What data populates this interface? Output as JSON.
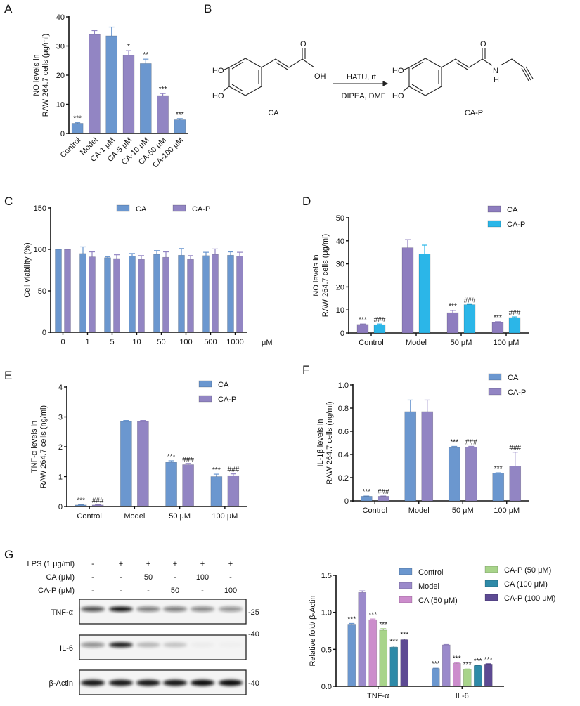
{
  "panel_labels": {
    "A": "A",
    "B": "B",
    "C": "C",
    "D": "D",
    "E": "E",
    "F": "F",
    "G": "G"
  },
  "scheme": {
    "reactant_name": "CA",
    "product_name": "CA-P",
    "reagents_top": "HATU, rt",
    "reagents_bottom": "DIPEA, DMF",
    "atoms": {
      "ho1": "HO",
      "ho2": "HO",
      "o1": "O",
      "oh": "OH",
      "ho3": "HO",
      "ho4": "HO",
      "o2": "O",
      "n": "N",
      "h": "H"
    }
  },
  "blot": {
    "conditions": [
      {
        "label": "LPS (1 μg/ml)",
        "values": [
          "-",
          "+",
          "+",
          "+",
          "+",
          "+"
        ]
      },
      {
        "label": "CA (μM)",
        "values": [
          "-",
          "-",
          "50",
          "-",
          "100",
          "-"
        ]
      },
      {
        "label": "CA-P (μM)",
        "values": [
          "-",
          "-",
          "-",
          "50",
          "-",
          "100"
        ]
      }
    ],
    "rows": [
      {
        "label": "TNF-α",
        "marker": "-25",
        "intensity": [
          0.75,
          1.0,
          0.55,
          0.55,
          0.5,
          0.45
        ]
      },
      {
        "label": "IL-6",
        "marker": "-40",
        "intensity": [
          0.45,
          0.95,
          0.25,
          0.2,
          0.03,
          0.02
        ]
      },
      {
        "label": "β-Actin",
        "marker": "-40",
        "intensity": [
          0.95,
          0.95,
          0.95,
          0.95,
          1.0,
          1.0
        ]
      }
    ]
  },
  "chart_data": [
    {
      "panel": "A",
      "type": "bar",
      "title": "",
      "ylabel": [
        "NO levels in",
        "RAW 264.7 cells (μg/ml)"
      ],
      "xlabel": "",
      "ylim": [
        0,
        40
      ],
      "yticks": [
        0,
        10,
        20,
        30,
        40
      ],
      "categories": [
        "Control",
        "Model",
        "CA-1 μM",
        "CA-5 μM",
        "CA-10 μM",
        "CA-50 μM",
        "CA-100 μM"
      ],
      "series": [
        {
          "name": "NO",
          "colors": [
            "#6b97cf",
            "#9285c3",
            "#6b97cf",
            "#9285c3",
            "#6b97cf",
            "#9285c3",
            "#6b97cf"
          ],
          "values": [
            3.5,
            34,
            33.5,
            26.8,
            24,
            13,
            4.7
          ],
          "errors": [
            0.2,
            1.3,
            3,
            1.6,
            1.5,
            0.7,
            0.4
          ],
          "annotations": [
            "***",
            "",
            "",
            "*",
            "**",
            "***",
            "***"
          ]
        }
      ]
    },
    {
      "panel": "C",
      "type": "bar",
      "title": "",
      "ylabel": [
        "Cell viability (%)"
      ],
      "xlabel": "μM",
      "ylim": [
        0,
        150
      ],
      "yticks": [
        0,
        50,
        100,
        150
      ],
      "legend": "top",
      "categories": [
        "0",
        "1",
        "5",
        "10",
        "50",
        "100",
        "500",
        "1000"
      ],
      "series": [
        {
          "name": "CA",
          "color": "#6b97cf",
          "values": [
            100,
            95,
            90,
            92,
            94,
            93,
            92.5,
            93
          ],
          "errors": [
            0,
            8,
            1,
            3,
            4.5,
            8,
            4,
            4
          ]
        },
        {
          "name": "CA-P",
          "color": "#9285c3",
          "values": [
            100,
            91,
            89,
            88,
            90.5,
            88,
            94,
            92
          ],
          "errors": [
            0,
            6,
            4.5,
            4.5,
            6.5,
            4.5,
            6.5,
            4.5
          ]
        }
      ]
    },
    {
      "panel": "D",
      "type": "bar",
      "title": "",
      "ylabel": [
        "NO levels in",
        "RAW 264.7 cells (μg/ml)"
      ],
      "xlabel": "",
      "ylim": [
        0,
        50
      ],
      "yticks": [
        0,
        10,
        20,
        30,
        40,
        50
      ],
      "legend": "top-right",
      "categories": [
        "Control",
        "Model",
        "50 μM",
        "100 μM"
      ],
      "series": [
        {
          "name": "CA",
          "color": "#8e7dbf",
          "values": [
            3.7,
            37,
            8.8,
            4.6
          ],
          "errors": [
            0.2,
            3.5,
            1,
            0.3
          ],
          "annotations": [
            "***",
            "",
            "***",
            "***"
          ]
        },
        {
          "name": "CA-P",
          "color": "#2bb6e8",
          "values": [
            3.6,
            34.3,
            12.3,
            6.7
          ],
          "errors": [
            0.3,
            3.8,
            0.1,
            0.3
          ],
          "annotations": [
            "###",
            "",
            "###",
            "###"
          ]
        }
      ]
    },
    {
      "panel": "E",
      "type": "bar",
      "title": "",
      "ylabel": [
        "TNF-α  levels in",
        "RAW 264.7 cells (ng/ml)"
      ],
      "xlabel": "",
      "ylim": [
        0,
        4
      ],
      "yticks": [
        0,
        1,
        2,
        3,
        4
      ],
      "legend": "top-right",
      "categories": [
        "Control",
        "Model",
        "50 μM",
        "100 μM"
      ],
      "series": [
        {
          "name": "CA",
          "color": "#6b97cf",
          "values": [
            0.05,
            2.85,
            1.48,
            1.0
          ],
          "errors": [
            0.01,
            0.03,
            0.05,
            0.08
          ],
          "annotations": [
            "***",
            "",
            "***",
            "***"
          ]
        },
        {
          "name": "CA-P",
          "color": "#9285c3",
          "values": [
            0.05,
            2.85,
            1.4,
            1.03
          ],
          "errors": [
            0.01,
            0.03,
            0.04,
            0.06
          ],
          "annotations": [
            "###",
            "",
            "###",
            "###"
          ]
        }
      ]
    },
    {
      "panel": "F",
      "type": "bar",
      "title": "",
      "ylabel": [
        "IL-1β levels in",
        "RAW 264.7 cells (ng/ml)"
      ],
      "xlabel": "",
      "ylim": [
        0,
        1.0
      ],
      "yticks": [
        "0",
        "0.2",
        "0.4",
        "0.6",
        "0.8",
        "1.0"
      ],
      "legend": "top-right",
      "categories": [
        "Control",
        "Model",
        "50 μM",
        "100 μM"
      ],
      "series": [
        {
          "name": "CA",
          "color": "#6b97cf",
          "values": [
            0.04,
            0.77,
            0.46,
            0.24
          ],
          "errors": [
            0.002,
            0.1,
            0.01,
            0.002
          ],
          "annotations": [
            "***",
            "",
            "***",
            "***"
          ]
        },
        {
          "name": "CA-P",
          "color": "#9285c3",
          "values": [
            0.04,
            0.77,
            0.465,
            0.3
          ],
          "errors": [
            0.002,
            0.1,
            0.005,
            0.12
          ],
          "annotations": [
            "###",
            "",
            "###",
            "###"
          ]
        }
      ]
    },
    {
      "panel": "G",
      "type": "bar",
      "title": "",
      "ylabel": [
        "Relative fold/ β-Actin"
      ],
      "xlabel": "",
      "ylim": [
        0,
        1.5
      ],
      "yticks": [
        "0.0",
        "0.5",
        "1.0",
        "1.5"
      ],
      "legend": "top-right",
      "categories": [
        "TNF-α",
        "IL-6"
      ],
      "series": [
        {
          "name": "Control",
          "color": "#6b97cf",
          "values": [
            0.84,
            0.24
          ],
          "errors": [
            0.01,
            0.005
          ],
          "annotations": [
            "***",
            "***"
          ]
        },
        {
          "name": "Model",
          "color": "#9b8acb",
          "values": [
            1.27,
            0.56
          ],
          "errors": [
            0.02,
            0.005
          ],
          "annotations": [
            "",
            ""
          ]
        },
        {
          "name": "CA (50 μM)",
          "color": "#cc8ccc",
          "values": [
            0.9,
            0.31
          ],
          "errors": [
            0.01,
            0.01
          ],
          "annotations": [
            "***",
            "***"
          ]
        },
        {
          "name": "CA-P (50 μM)",
          "color": "#a8d48a",
          "values": [
            0.76,
            0.23
          ],
          "errors": [
            0.02,
            0.005
          ],
          "annotations": [
            "***",
            "***"
          ]
        },
        {
          "name": "CA (100 μM)",
          "color": "#2e8aa8",
          "values": [
            0.53,
            0.28
          ],
          "errors": [
            0.015,
            0.005
          ],
          "annotations": [
            "***",
            "***"
          ]
        },
        {
          "name": "CA-P (100 μM)",
          "color": "#5d4a93",
          "values": [
            0.63,
            0.3
          ],
          "errors": [
            0.01,
            0.005
          ],
          "annotations": [
            "***",
            "***"
          ]
        }
      ]
    }
  ]
}
